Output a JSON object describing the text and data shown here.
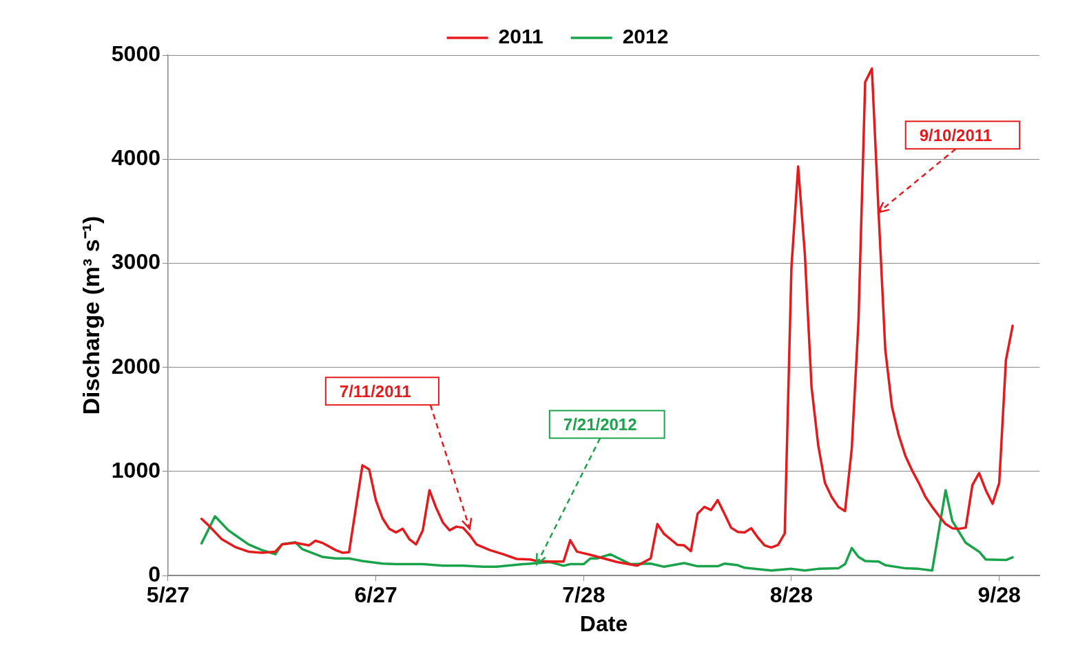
{
  "chart_data": {
    "type": "line",
    "xlabel": "Date",
    "ylabel": "Discharge (m³ s⁻¹)",
    "xlim": [
      "--05-27",
      "--10-04"
    ],
    "xticks": [
      {
        "value": "--05-27",
        "label": "5/27"
      },
      {
        "value": "--06-27",
        "label": "6/27"
      },
      {
        "value": "--07-28",
        "label": "7/28"
      },
      {
        "value": "--08-28",
        "label": "8/28"
      },
      {
        "value": "--09-28",
        "label": "9/28"
      }
    ],
    "ylim": [
      0,
      5000
    ],
    "yticks": [
      0,
      1000,
      2000,
      3000,
      4000,
      5000
    ],
    "grid": "y",
    "legend": "top",
    "marker": "none",
    "line_style": "solid",
    "series": [
      {
        "name": "2011",
        "color": "#e41a1c",
        "x": [
          "--06-01",
          "--06-02",
          "--06-04",
          "--06-06",
          "--06-08",
          "--06-10",
          "--06-12",
          "--06-13",
          "--06-15",
          "--06-17",
          "--06-18",
          "--06-19",
          "--06-21",
          "--06-22",
          "--06-23",
          "--06-25",
          "--06-26",
          "--06-27",
          "--06-28",
          "--06-29",
          "--06-30",
          "--07-01",
          "--07-02",
          "--07-03",
          "--07-04",
          "--07-05",
          "--07-06",
          "--07-07",
          "--07-08",
          "--07-09",
          "--07-10",
          "--07-11",
          "--07-12",
          "--07-14",
          "--07-16",
          "--07-18",
          "--07-20",
          "--07-21",
          "--07-23",
          "--07-25",
          "--07-26",
          "--07-27",
          "--07-29",
          "--07-31",
          "--08-02",
          "--08-05",
          "--08-07",
          "--08-08",
          "--08-09",
          "--08-11",
          "--08-12",
          "--08-13",
          "--08-14",
          "--08-15",
          "--08-16",
          "--08-17",
          "--08-18",
          "--08-19",
          "--08-20",
          "--08-21",
          "--08-22",
          "--08-23",
          "--08-24",
          "--08-25",
          "--08-26",
          "--08-27",
          "--08-28",
          "--08-29",
          "--08-30",
          "--08-31",
          "--09-01",
          "--09-02",
          "--09-03",
          "--09-04",
          "--09-05",
          "--09-06",
          "--09-07",
          "--09-08",
          "--09-09",
          "--09-10",
          "--09-11",
          "--09-12",
          "--09-13",
          "--09-14",
          "--09-15",
          "--09-16",
          "--09-17",
          "--09-18",
          "--09-19",
          "--09-20",
          "--09-21",
          "--09-22",
          "--09-23",
          "--09-24",
          "--09-25",
          "--09-26",
          "--09-27",
          "--09-28",
          "--09-29",
          "--09-30"
        ],
        "values": [
          545,
          485,
          350,
          275,
          230,
          220,
          230,
          300,
          315,
          290,
          335,
          315,
          245,
          220,
          225,
          1060,
          1020,
          725,
          550,
          450,
          415,
          450,
          350,
          300,
          435,
          820,
          650,
          510,
          435,
          470,
          460,
          390,
          300,
          245,
          205,
          160,
          155,
          140,
          135,
          135,
          340,
          230,
          200,
          165,
          130,
          95,
          165,
          495,
          400,
          295,
          290,
          235,
          595,
          660,
          630,
          725,
          595,
          460,
          420,
          415,
          455,
          365,
          290,
          270,
          295,
          405,
          2960,
          3930,
          3090,
          1810,
          1250,
          890,
          755,
          660,
          620,
          1220,
          2440,
          4740,
          4870,
          3490,
          2170,
          1620,
          1350,
          1150,
          1010,
          890,
          755,
          660,
          575,
          495,
          455,
          450,
          460,
          870,
          985,
          820,
          690,
          890,
          2070,
          2400
        ]
      },
      {
        "name": "2012",
        "color": "#1aa34a",
        "x": [
          "--06-01",
          "--06-03",
          "--06-05",
          "--06-06",
          "--06-08",
          "--06-10",
          "--06-12",
          "--06-13",
          "--06-15",
          "--06-16",
          "--06-18",
          "--06-19",
          "--06-21",
          "--06-23",
          "--06-25",
          "--06-28",
          "--06-30",
          "--07-04",
          "--07-07",
          "--07-10",
          "--07-13",
          "--07-15",
          "--07-19",
          "--07-23",
          "--07-25",
          "--07-26",
          "--07-28",
          "--07-29",
          "--07-30",
          "--08-01",
          "--08-04",
          "--08-07",
          "--08-09",
          "--08-12",
          "--08-14",
          "--08-17",
          "--08-18",
          "--08-20",
          "--08-21",
          "--08-25",
          "--08-28",
          "--08-30",
          "--09-01",
          "--09-04",
          "--09-05",
          "--09-06",
          "--09-07",
          "--09-08",
          "--09-10",
          "--09-11",
          "--09-14",
          "--09-16",
          "--09-18",
          "--09-20",
          "--09-21",
          "--09-23",
          "--09-25",
          "--09-26",
          "--09-29",
          "--09-30"
        ],
        "values": [
          310,
          570,
          435,
          390,
          300,
          245,
          205,
          300,
          320,
          255,
          205,
          180,
          165,
          165,
          140,
          115,
          110,
          110,
          95,
          95,
          85,
          85,
          110,
          130,
          95,
          110,
          110,
          165,
          165,
          205,
          110,
          115,
          85,
          120,
          90,
          90,
          115,
          100,
          75,
          50,
          65,
          50,
          65,
          70,
          110,
          265,
          180,
          140,
          135,
          100,
          70,
          65,
          50,
          820,
          525,
          315,
          230,
          155,
          150,
          175
        ]
      }
    ],
    "annotations": [
      {
        "text": "7/11/2011",
        "x": "--07-11",
        "y": 450
      },
      {
        "text": "7/21/2012",
        "x": "--07-21",
        "y": 110
      },
      {
        "text": "9/10/2011",
        "x": "--09-10",
        "y": 3490
      }
    ]
  }
}
